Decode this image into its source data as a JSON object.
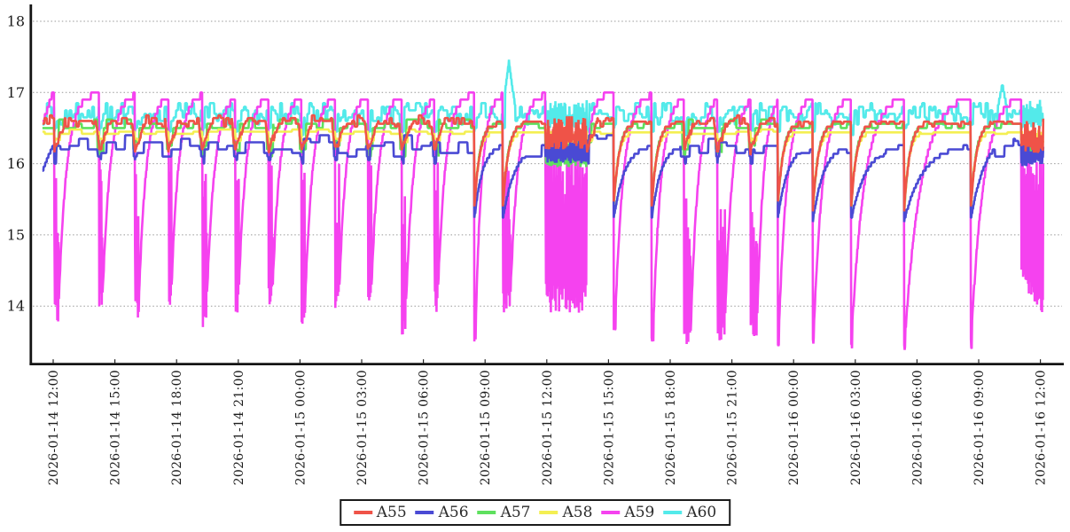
{
  "window": {
    "title": "time-series line chart",
    "background": "#ffffff"
  },
  "chart_data": {
    "type": "line",
    "title": "",
    "xlabel": "",
    "ylabel": "",
    "grid": {
      "horizontal": true,
      "vertical": false,
      "style": "dotted",
      "color": "#999999"
    },
    "y_axis": {
      "ticks": [
        14,
        15,
        16,
        17,
        18
      ],
      "min": 13.2,
      "max": 18.35
    },
    "x_axis": {
      "tick_hours": [
        0,
        3,
        6,
        9,
        12,
        15,
        18,
        21,
        24,
        27,
        30,
        33,
        36,
        39,
        42,
        45,
        48
      ],
      "tick_labels": [
        "2026-01-14 12:00",
        "2026-01-14 15:00",
        "2026-01-14 18:00",
        "2026-01-14 21:00",
        "2026-01-15 00:00",
        "2026-01-15 03:00",
        "2026-01-15 06:00",
        "2026-01-15 09:00",
        "2026-01-15 12:00",
        "2026-01-15 15:00",
        "2026-01-15 18:00",
        "2026-01-15 21:00",
        "2026-01-16 00:00",
        "2026-01-16 03:00",
        "2026-01-16 06:00",
        "2026-01-16 09:00",
        "2026-01-16 12:00"
      ],
      "label_rotation_deg": -90
    },
    "legend": {
      "position": "bottom-center",
      "entries": [
        "A55",
        "A56",
        "A57",
        "A58",
        "A59",
        "A60"
      ]
    },
    "series": [
      {
        "name": "A55",
        "color": "#ef5348",
        "summary": "wiggly ~16.6; V-dips to ~16.2 at each cycle; deep drops to ~15.35 with fast staircase recovery"
      },
      {
        "name": "A56",
        "color": "#4a4ad4",
        "summary": "flat ~16.25 with square dips to ~16.0; deep drops to 15.2 with slow staircase recovery; peak 16.45 near 2026-01-16 07:00"
      },
      {
        "name": "A57",
        "color": "#5ee05e",
        "summary": "~16.56 mostly hidden; dips to ~16.1; deep drops to ~15.3"
      },
      {
        "name": "A58",
        "color": "#f4ef52",
        "summary": "flat ~16.45; small dips to ~16.33; deep drops to ~15.35"
      },
      {
        "name": "A59",
        "color": "#f542ef",
        "summary": "sawtooth: plateau 17.0 then crash to 13.4-14.0 every 1.6-3.2 h; dense oscillation band 13.9-16.2 around 2026-01-15 12:00-14:00; descending band to ~13.9 at series end"
      },
      {
        "name": "A60",
        "color": "#53eaea",
        "summary": "ragged band 16.55-16.85; spike 17.42 at ~2026-01-15 10:10 and 17.12 at ~2026-01-16 10:09"
      }
    ],
    "draw_order": [
      "A60",
      "A59",
      "A57",
      "A58",
      "A56",
      "A55"
    ],
    "pattern": {
      "t_start": -0.52,
      "t_end": 48.15,
      "step": 0.02,
      "plateau": 17.0,
      "events": [
        {
          "t": 0.05,
          "deep": false,
          "low": 13.75,
          "wide": 0.22,
          "ramp": 1.15
        },
        {
          "t": 2.24,
          "deep": false,
          "low": 13.95,
          "wide": 0.18,
          "ramp": 1.1
        },
        {
          "t": 3.97,
          "deep": false,
          "low": 13.8,
          "wide": 0.2,
          "ramp": 1.1
        },
        {
          "t": 5.6,
          "deep": false,
          "low": 14.0,
          "wide": 0.16,
          "ramp": 1.05
        },
        {
          "t": 7.24,
          "deep": false,
          "low": 13.7,
          "wide": 0.22,
          "ramp": 1.15
        },
        {
          "t": 8.84,
          "deep": false,
          "low": 13.9,
          "wide": 0.18,
          "ramp": 1.1
        },
        {
          "t": 10.47,
          "deep": false,
          "low": 13.95,
          "wide": 0.2,
          "ramp": 1.1
        },
        {
          "t": 12.07,
          "deep": false,
          "low": 13.75,
          "wide": 0.18,
          "ramp": 1.1
        },
        {
          "t": 13.71,
          "deep": false,
          "low": 13.9,
          "wide": 0.2,
          "ramp": 1.05
        },
        {
          "t": 15.3,
          "deep": false,
          "low": 13.85,
          "wide": 0.16,
          "ramp": 1.1
        },
        {
          "t": 16.94,
          "deep": false,
          "low": 13.6,
          "wide": 0.2,
          "ramp": 1.15
        },
        {
          "t": 18.53,
          "deep": false,
          "low": 13.9,
          "wide": 0.18,
          "ramp": 1.1
        },
        {
          "t": 20.47,
          "deep": true,
          "low": 13.5,
          "wide": 0.08,
          "ramp": 0.9
        },
        {
          "t": 21.85,
          "deep": true,
          "low": 13.85,
          "wide": 0.38,
          "ramp": 1.15
        },
        {
          "t": 25.95,
          "deep": false,
          "low": 15.8,
          "wide": 0.0,
          "ramp": 0.85
        },
        {
          "t": 27.24,
          "deep": true,
          "low": 13.6,
          "wide": 0.1,
          "ramp": 1.2
        },
        {
          "t": 29.09,
          "deep": true,
          "low": 13.5,
          "wide": 0.1,
          "ramp": 1.15
        },
        {
          "t": 30.66,
          "deep": false,
          "low": 13.45,
          "wide": 0.35,
          "ramp": 1.1
        },
        {
          "t": 32.28,
          "deep": false,
          "low": 13.45,
          "wide": 0.38,
          "ramp": 1.1
        },
        {
          "t": 33.9,
          "deep": false,
          "low": 13.5,
          "wide": 0.33,
          "ramp": 0.95
        },
        {
          "t": 35.22,
          "deep": true,
          "low": 13.4,
          "wide": 0.07,
          "ramp": 1.25
        },
        {
          "t": 36.94,
          "deep": true,
          "low": 13.45,
          "wide": 0.06,
          "ramp": 1.35
        },
        {
          "t": 38.79,
          "deep": true,
          "low": 13.4,
          "wide": 0.06,
          "ramp": 1.9
        },
        {
          "t": 41.38,
          "deep": true,
          "low": 13.35,
          "wide": 0.06,
          "ramp": 2.4
        },
        {
          "t": 44.61,
          "deep": true,
          "low": 13.4,
          "wide": 0.06,
          "ramp": 1.8,
          "blue_target": 16.45
        }
      ],
      "band": {
        "start": 23.92,
        "end": 25.95,
        "levels": {
          "A55": [
            16.2,
            16.68
          ],
          "A56": [
            16.0,
            16.38
          ],
          "A57": [
            15.95,
            16.4
          ],
          "A58": [
            16.28,
            16.5
          ],
          "A59": [
            13.9,
            16.2
          ],
          "A60": [
            16.5,
            16.9
          ]
        }
      },
      "end_band": {
        "start": 47.07,
        "end": 48.15,
        "floor_start": 14.35,
        "floor_end": 13.86,
        "top": 16.15,
        "levels": {
          "A55": [
            16.15,
            16.65
          ],
          "A56": [
            15.95,
            16.37
          ],
          "A57": [
            16.05,
            16.4
          ],
          "A58": [
            16.25,
            16.5
          ],
          "A60": [
            16.48,
            16.9
          ]
        }
      },
      "cyan_spikes": [
        {
          "t": 22.16,
          "peak": 17.42,
          "half_width": 0.3
        },
        {
          "t": 46.15,
          "peak": 17.12,
          "half_width": 0.22
        }
      ],
      "series_params": {
        "A55": {
          "base": 16.6,
          "noise": 0.14,
          "event_dip": 16.2,
          "deep_drop": 1.25,
          "recover_tau": 0.28
        },
        "A56": {
          "base": 16.25,
          "noise": 0.3,
          "event_dip": 15.98,
          "deep_low": 15.2
        },
        "A57": {
          "base": 16.56,
          "noise": 0.18,
          "event_dip": 16.08,
          "deep_drop": 1.26,
          "recover_tau": 0.24
        },
        "A58": {
          "base": 16.45,
          "noise": 0.06,
          "event_dip": 16.33,
          "deep_drop": 1.1,
          "recover_tau": 0.22
        },
        "A59": {
          "plateau": 17.0
        },
        "A60": {
          "base": 16.7,
          "noise": 0.3,
          "event_dip": 16.42
        }
      }
    }
  }
}
